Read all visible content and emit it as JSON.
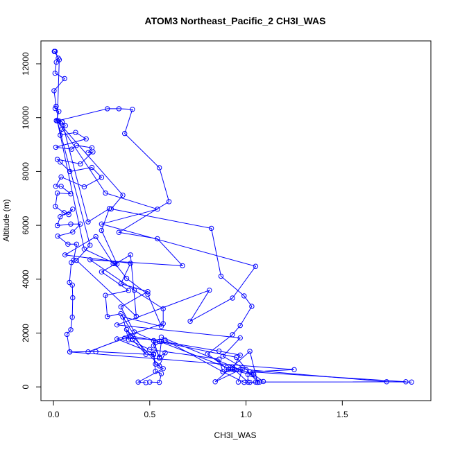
{
  "chart_data": {
    "type": "line",
    "title": "ATOM3 Northeast_Pacific_2 CH3I_WAS",
    "xlabel": "CH3I_WAS",
    "ylabel": "Altitude (m)",
    "xlim": [
      -0.065,
      1.96
    ],
    "ylim": [
      -510,
      12850
    ],
    "xticks": [
      0.0,
      0.5,
      1.0,
      1.5
    ],
    "xtick_labels": [
      "0.0",
      "0.5",
      "1.0",
      "1.5"
    ],
    "yticks": [
      0,
      2000,
      4000,
      6000,
      8000,
      10000,
      12000
    ],
    "ytick_labels": [
      "0",
      "2000",
      "4000",
      "6000",
      "8000",
      "10000",
      "12000"
    ],
    "colors": {
      "series": "#0000ff",
      "frame": "#000000",
      "text": "#000000"
    },
    "marker": "open-circle",
    "grid": false,
    "series": [
      {
        "values": [
          [
            0.005,
            12460
          ],
          [
            0.009,
            12460
          ],
          [
            0.025,
            12210
          ],
          [
            0.015,
            12060
          ],
          [
            0.008,
            11650
          ],
          [
            0.058,
            11450
          ],
          [
            0.003,
            11000
          ],
          [
            0.014,
            10420
          ],
          [
            0.009,
            10340
          ],
          [
            0.028,
            10230
          ],
          [
            0.015,
            9890
          ],
          [
            0.028,
            9880
          ],
          [
            0.045,
            9840
          ],
          [
            0.062,
            9700
          ],
          [
            0.045,
            9570
          ],
          [
            0.035,
            9350
          ],
          [
            0.115,
            9450
          ],
          [
            0.17,
            9210
          ],
          [
            0.012,
            8900
          ],
          [
            0.095,
            8830
          ],
          [
            0.12,
            8970
          ],
          [
            0.2,
            8880
          ],
          [
            0.18,
            8700
          ],
          [
            0.205,
            8730
          ],
          [
            0.14,
            8280
          ],
          [
            0.02,
            8450
          ],
          [
            0.035,
            8350
          ],
          [
            0.085,
            8000
          ],
          [
            0.2,
            8150
          ],
          [
            0.25,
            7780
          ],
          [
            0.16,
            7430
          ],
          [
            0.04,
            7800
          ],
          [
            0.012,
            7450
          ],
          [
            0.04,
            7450
          ],
          [
            0.09,
            7170
          ],
          [
            0.02,
            7200
          ],
          [
            0.01,
            6700
          ],
          [
            0.055,
            6470
          ],
          [
            0.08,
            6400
          ],
          [
            0.1,
            6600
          ],
          [
            0.035,
            6320
          ],
          [
            0.02,
            5990
          ],
          [
            0.09,
            6050
          ],
          [
            0.14,
            6050
          ],
          [
            0.1,
            5750
          ],
          [
            0.022,
            5600
          ],
          [
            0.075,
            5300
          ],
          [
            0.12,
            5300
          ],
          [
            0.105,
            4710
          ],
          [
            0.093,
            4620
          ],
          [
            0.083,
            3880
          ],
          [
            0.098,
            3780
          ],
          [
            0.1,
            3310
          ],
          [
            0.098,
            2590
          ],
          [
            0.09,
            2120
          ],
          [
            0.07,
            1950
          ],
          [
            0.085,
            1300
          ],
          [
            0.22,
            1310
          ],
          [
            0.52,
            1200
          ],
          [
            0.53,
            580
          ],
          [
            0.56,
            490
          ],
          [
            0.55,
            170
          ],
          [
            0.5,
            180
          ]
        ]
      },
      {
        "values": [
          [
            0.005,
            12460
          ],
          [
            0.03,
            12150
          ],
          [
            0.02,
            9880
          ],
          [
            0.28,
            10330
          ],
          [
            0.34,
            10330
          ],
          [
            0.41,
            10310
          ],
          [
            0.37,
            9410
          ],
          [
            0.55,
            8140
          ],
          [
            0.6,
            6880
          ],
          [
            0.34,
            5740
          ],
          [
            0.54,
            5500
          ],
          [
            0.67,
            4500
          ],
          [
            0.19,
            4720
          ],
          [
            0.42,
            3590
          ],
          [
            0.57,
            2900
          ],
          [
            0.57,
            2350
          ],
          [
            0.33,
            1780
          ],
          [
            0.52,
            1230
          ],
          [
            0.53,
            850
          ],
          [
            0.57,
            680
          ],
          [
            0.44,
            180
          ],
          [
            0.48,
            160
          ]
        ]
      },
      {
        "values": [
          [
            0.02,
            9880
          ],
          [
            0.36,
            7120
          ],
          [
            0.3,
            6610
          ],
          [
            0.82,
            5890
          ],
          [
            0.87,
            4110
          ],
          [
            0.99,
            3380
          ],
          [
            1.03,
            2990
          ],
          [
            0.97,
            2280
          ],
          [
            0.93,
            1940
          ],
          [
            0.8,
            1220
          ],
          [
            0.91,
            640
          ],
          [
            1.03,
            460
          ],
          [
            1.07,
            180
          ]
        ]
      },
      {
        "values": [
          [
            0.02,
            9880
          ],
          [
            0.27,
            7200
          ],
          [
            0.54,
            6600
          ],
          [
            0.25,
            6050
          ],
          [
            1.05,
            4480
          ],
          [
            0.93,
            3300
          ],
          [
            0.71,
            2440
          ],
          [
            0.81,
            3590
          ],
          [
            0.33,
            2300
          ],
          [
            0.97,
            1820
          ],
          [
            0.88,
            1140
          ],
          [
            1.0,
            640
          ],
          [
            1.73,
            190
          ],
          [
            1.86,
            180
          ]
        ]
      },
      {
        "values": [
          [
            0.085,
            1300
          ],
          [
            1.25,
            640
          ],
          [
            1.02,
            560
          ],
          [
            1.83,
            190
          ],
          [
            1.05,
            180
          ],
          [
            1.02,
            170
          ],
          [
            0.99,
            170
          ],
          [
            0.88,
            560
          ],
          [
            0.58,
            1740
          ],
          [
            0.37,
            1810
          ],
          [
            0.18,
            1300
          ],
          [
            0.4,
            1900
          ],
          [
            0.95,
            1100
          ],
          [
            1.06,
            170
          ],
          [
            1.02,
            1320
          ],
          [
            0.84,
            190
          ],
          [
            0.97,
            640
          ],
          [
            0.56,
            1850
          ]
        ]
      },
      {
        "values": [
          [
            0.02,
            9880
          ],
          [
            0.19,
            5260
          ],
          [
            0.12,
            4700
          ],
          [
            0.43,
            2620
          ],
          [
            0.4,
            4900
          ],
          [
            0.25,
            4270
          ],
          [
            0.39,
            3580
          ],
          [
            0.27,
            3400
          ],
          [
            0.28,
            2610
          ],
          [
            0.35,
            2720
          ],
          [
            0.48,
            1210
          ],
          [
            0.41,
            1760
          ],
          [
            0.38,
            2130
          ],
          [
            0.55,
            780
          ],
          [
            0.58,
            1270
          ],
          [
            0.55,
            1110
          ],
          [
            0.52,
            1530
          ],
          [
            0.53,
            1640
          ],
          [
            0.55,
            1690
          ],
          [
            0.9,
            720
          ],
          [
            0.93,
            730
          ],
          [
            1.04,
            460
          ],
          [
            1.09,
            200
          ]
        ]
      },
      {
        "values": [
          [
            0.02,
            9880
          ],
          [
            0.16,
            5120
          ],
          [
            0.32,
            4580
          ],
          [
            0.38,
            4030
          ],
          [
            0.49,
            3440
          ],
          [
            0.56,
            2250
          ],
          [
            0.36,
            2600
          ],
          [
            0.39,
            1750
          ],
          [
            0.5,
            1390
          ],
          [
            0.86,
            1030
          ],
          [
            0.88,
            560
          ],
          [
            0.94,
            640
          ],
          [
            1.01,
            180
          ],
          [
            1.01,
            460
          ]
        ]
      },
      {
        "values": [
          [
            0.045,
            9840
          ],
          [
            0.18,
            6130
          ],
          [
            0.29,
            6620
          ],
          [
            0.25,
            5810
          ],
          [
            0.33,
            4560
          ],
          [
            0.31,
            4580
          ],
          [
            0.22,
            5580
          ],
          [
            0.06,
            4900
          ],
          [
            0.4,
            4590
          ],
          [
            0.35,
            3830
          ],
          [
            0.49,
            3540
          ],
          [
            0.35,
            2970
          ],
          [
            0.42,
            2040
          ],
          [
            0.52,
            1720
          ],
          [
            0.55,
            1070
          ],
          [
            0.56,
            1690
          ],
          [
            0.86,
            1330
          ],
          [
            0.97,
            1180
          ],
          [
            0.93,
            650
          ],
          [
            0.98,
            650
          ],
          [
            0.96,
            180
          ]
        ]
      }
    ]
  }
}
